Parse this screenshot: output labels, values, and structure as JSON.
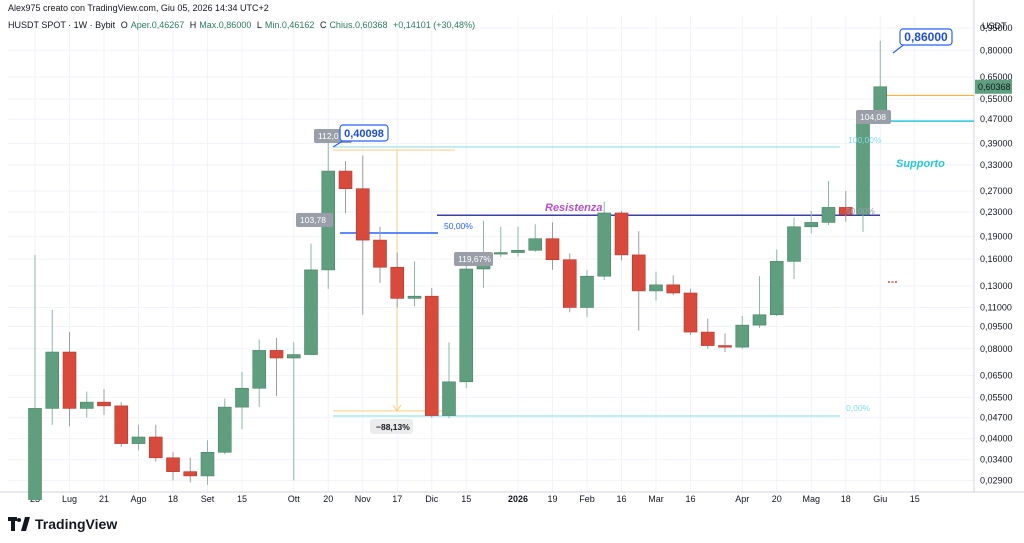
{
  "header": {
    "top_text": "Alex975 creato con TradingView.com, Giu 05, 2026 14:34 UTC+2",
    "symbol": "HUSDT SPOT · 1W · Bybit",
    "open_label": "O",
    "open_value": "Aper.0,46267",
    "high_label": "H",
    "high_value": "Max.0,86000",
    "low_label": "L",
    "low_value": "Min.0,46162",
    "close_label": "C",
    "close_value": "Chius.0,60368",
    "change_value": "+0,14101 (+30,48%)"
  },
  "brand": {
    "name": "TradingView"
  },
  "colors": {
    "up": "#5f9e7e",
    "down": "#d84a3b",
    "grid": "#f0f3fa",
    "callout_blue": "#2962ff",
    "callout_gray": "#9a9ea8",
    "cyan": "#26c6da",
    "resistance": "#3b3fa8",
    "purple_text": "#b552c6",
    "orange": "#f5a623"
  },
  "chart_data": {
    "type": "candlestick",
    "scale": "log",
    "price_unit": "USDT",
    "ylim": [
      0.0265,
      1.05
    ],
    "y_ticks": [
      "0,95000",
      "0,80000",
      "0,65000",
      "0,55000",
      "0,47000",
      "0,39000",
      "0,33000",
      "0,27000",
      "0,23000",
      "0,19000",
      "0,16000",
      "0,13000",
      "0,11000",
      "0,09500",
      "0,08000",
      "0,06500",
      "0,05500",
      "0,04700",
      "0,04000",
      "0,03400",
      "0,02900"
    ],
    "y_tick_values": [
      0.95,
      0.8,
      0.65,
      0.55,
      0.47,
      0.39,
      0.33,
      0.27,
      0.23,
      0.19,
      0.16,
      0.13,
      0.11,
      0.095,
      0.08,
      0.065,
      0.055,
      0.047,
      0.04,
      0.034,
      0.029
    ],
    "x_labels": [
      {
        "text": "23",
        "bar": 0
      },
      {
        "text": "Lug",
        "bar": 2
      },
      {
        "text": "21",
        "bar": 4
      },
      {
        "text": "Ago",
        "bar": 6
      },
      {
        "text": "18",
        "bar": 8
      },
      {
        "text": "Set",
        "bar": 10
      },
      {
        "text": "15",
        "bar": 12
      },
      {
        "text": "Ott",
        "bar": 15
      },
      {
        "text": "20",
        "bar": 17
      },
      {
        "text": "Nov",
        "bar": 19
      },
      {
        "text": "17",
        "bar": 21
      },
      {
        "text": "Dic",
        "bar": 23
      },
      {
        "text": "15",
        "bar": 25
      },
      {
        "text": "2026",
        "bar": 28
      },
      {
        "text": "19",
        "bar": 30
      },
      {
        "text": "Feb",
        "bar": 32
      },
      {
        "text": "16",
        "bar": 34
      },
      {
        "text": "Mar",
        "bar": 36
      },
      {
        "text": "16",
        "bar": 38
      },
      {
        "text": "Apr",
        "bar": 41
      },
      {
        "text": "20",
        "bar": 43
      },
      {
        "text": "Mag",
        "bar": 45
      },
      {
        "text": "18",
        "bar": 47
      },
      {
        "text": "Giu",
        "bar": 49
      },
      {
        "text": "15",
        "bar": 51
      }
    ],
    "candles": [
      {
        "o": 0.025,
        "h": 0.165,
        "l": 0.025,
        "c": 0.0505
      },
      {
        "o": 0.0505,
        "h": 0.108,
        "l": 0.0445,
        "c": 0.078
      },
      {
        "o": 0.078,
        "h": 0.091,
        "l": 0.044,
        "c": 0.0505
      },
      {
        "o": 0.0505,
        "h": 0.0575,
        "l": 0.047,
        "c": 0.053
      },
      {
        "o": 0.053,
        "h": 0.0585,
        "l": 0.048,
        "c": 0.0515
      },
      {
        "o": 0.0515,
        "h": 0.053,
        "l": 0.0375,
        "c": 0.0385
      },
      {
        "o": 0.0385,
        "h": 0.0445,
        "l": 0.0365,
        "c": 0.0405
      },
      {
        "o": 0.0405,
        "h": 0.0445,
        "l": 0.0335,
        "c": 0.0345
      },
      {
        "o": 0.0345,
        "h": 0.036,
        "l": 0.029,
        "c": 0.031
      },
      {
        "o": 0.031,
        "h": 0.0345,
        "l": 0.0285,
        "c": 0.03
      },
      {
        "o": 0.03,
        "h": 0.0395,
        "l": 0.028,
        "c": 0.036
      },
      {
        "o": 0.036,
        "h": 0.0545,
        "l": 0.0355,
        "c": 0.051
      },
      {
        "o": 0.051,
        "h": 0.067,
        "l": 0.043,
        "c": 0.059
      },
      {
        "o": 0.059,
        "h": 0.086,
        "l": 0.051,
        "c": 0.079
      },
      {
        "o": 0.079,
        "h": 0.087,
        "l": 0.0555,
        "c": 0.0745
      },
      {
        "o": 0.0745,
        "h": 0.084,
        "l": 0.029,
        "c": 0.0765
      },
      {
        "o": 0.0765,
        "h": 0.18,
        "l": 0.076,
        "c": 0.147
      },
      {
        "o": 0.147,
        "h": 0.395,
        "l": 0.127,
        "c": 0.315
      },
      {
        "o": 0.315,
        "h": 0.34,
        "l": 0.228,
        "c": 0.275
      },
      {
        "o": 0.275,
        "h": 0.355,
        "l": 0.104,
        "c": 0.185
      },
      {
        "o": 0.185,
        "h": 0.205,
        "l": 0.133,
        "c": 0.15
      },
      {
        "o": 0.15,
        "h": 0.168,
        "l": 0.11,
        "c": 0.118
      },
      {
        "o": 0.118,
        "h": 0.157,
        "l": 0.111,
        "c": 0.12
      },
      {
        "o": 0.12,
        "h": 0.128,
        "l": 0.047,
        "c": 0.0478
      },
      {
        "o": 0.0478,
        "h": 0.084,
        "l": 0.0468,
        "c": 0.062
      },
      {
        "o": 0.062,
        "h": 0.153,
        "l": 0.059,
        "c": 0.148
      },
      {
        "o": 0.148,
        "h": 0.215,
        "l": 0.128,
        "c": 0.167
      },
      {
        "o": 0.167,
        "h": 0.205,
        "l": 0.162,
        "c": 0.168
      },
      {
        "o": 0.168,
        "h": 0.205,
        "l": 0.163,
        "c": 0.171
      },
      {
        "o": 0.171,
        "h": 0.209,
        "l": 0.169,
        "c": 0.187
      },
      {
        "o": 0.187,
        "h": 0.212,
        "l": 0.147,
        "c": 0.159
      },
      {
        "o": 0.159,
        "h": 0.167,
        "l": 0.106,
        "c": 0.11
      },
      {
        "o": 0.11,
        "h": 0.147,
        "l": 0.102,
        "c": 0.14
      },
      {
        "o": 0.14,
        "h": 0.249,
        "l": 0.136,
        "c": 0.228
      },
      {
        "o": 0.228,
        "h": 0.232,
        "l": 0.158,
        "c": 0.165
      },
      {
        "o": 0.165,
        "h": 0.198,
        "l": 0.092,
        "c": 0.125
      },
      {
        "o": 0.125,
        "h": 0.145,
        "l": 0.116,
        "c": 0.131
      },
      {
        "o": 0.131,
        "h": 0.141,
        "l": 0.121,
        "c": 0.123
      },
      {
        "o": 0.123,
        "h": 0.127,
        "l": 0.089,
        "c": 0.091
      },
      {
        "o": 0.091,
        "h": 0.101,
        "l": 0.08,
        "c": 0.082
      },
      {
        "o": 0.082,
        "h": 0.09,
        "l": 0.078,
        "c": 0.081
      },
      {
        "o": 0.081,
        "h": 0.103,
        "l": 0.08,
        "c": 0.096
      },
      {
        "o": 0.096,
        "h": 0.14,
        "l": 0.094,
        "c": 0.104
      },
      {
        "o": 0.104,
        "h": 0.172,
        "l": 0.103,
        "c": 0.157
      },
      {
        "o": 0.157,
        "h": 0.22,
        "l": 0.137,
        "c": 0.205
      },
      {
        "o": 0.205,
        "h": 0.232,
        "l": 0.195,
        "c": 0.212
      },
      {
        "o": 0.212,
        "h": 0.292,
        "l": 0.208,
        "c": 0.238
      },
      {
        "o": 0.238,
        "h": 0.27,
        "l": 0.213,
        "c": 0.225
      },
      {
        "o": 0.225,
        "h": 0.48,
        "l": 0.197,
        "c": 0.463
      },
      {
        "o": 0.46267,
        "h": 0.86,
        "l": 0.46162,
        "c": 0.60368
      }
    ],
    "annotations": {
      "resistance": {
        "text": "Resistenza",
        "price": 0.224
      },
      "support": {
        "text": "Supporto",
        "price": 0.463
      },
      "current_price": "0,60368",
      "high_callout": "0,86000",
      "mid_callout": "0,40098",
      "pct_badges": [
        "112,0",
        "103,78",
        "119,67%",
        "104,08"
      ],
      "fib_labels": [
        "100,00%",
        "50,00%",
        "0,00%",
        "50,00%"
      ],
      "range_label": "−88,13%"
    }
  }
}
